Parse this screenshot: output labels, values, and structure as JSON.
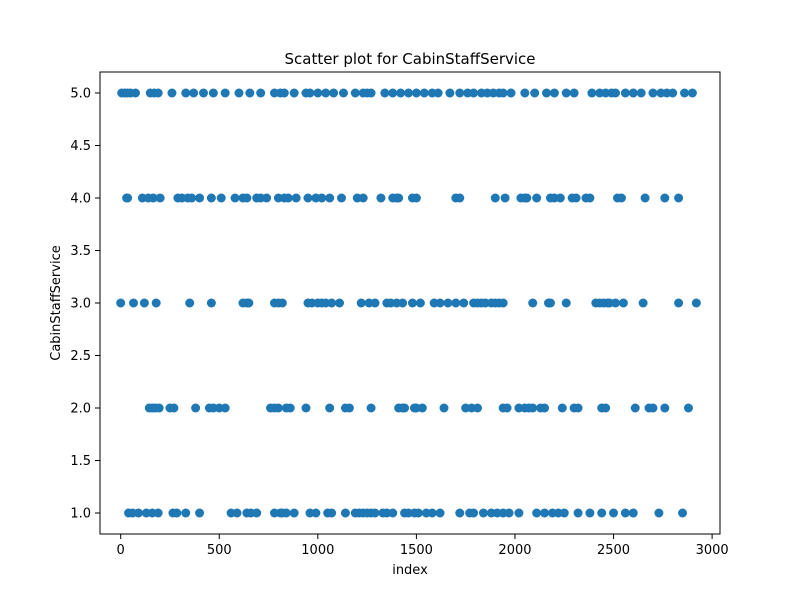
{
  "chart_data": {
    "type": "scatter",
    "title": "Scatter plot for CabinStaffService",
    "xlabel": "index",
    "ylabel": "CabinStaffService",
    "xlim": [
      -105,
      3040
    ],
    "ylim": [
      0.8,
      5.2
    ],
    "xticks": [
      0,
      500,
      1000,
      1500,
      2000,
      2500,
      3000
    ],
    "yticks": [
      1.0,
      1.5,
      2.0,
      2.5,
      3.0,
      3.5,
      4.0,
      4.5,
      5.0
    ],
    "xtick_labels": [
      "0",
      "500",
      "1000",
      "1500",
      "2000",
      "2500",
      "3000"
    ],
    "ytick_labels": [
      "1.0",
      "1.5",
      "2.0",
      "2.5",
      "3.0",
      "3.5",
      "4.0",
      "4.5",
      "5.0"
    ],
    "marker_color": "#1f77b4",
    "grid": false,
    "series": [
      {
        "x": [
          5,
          20,
          35,
          50,
          75,
          150,
          170,
          190,
          260,
          330,
          370,
          420,
          470,
          530,
          600,
          655,
          710,
          780,
          810,
          830,
          880,
          940,
          960,
          1000,
          1040,
          1080,
          1130,
          1190,
          1230,
          1250,
          1270,
          1340,
          1380,
          1420,
          1460,
          1500,
          1540,
          1580,
          1610,
          1670,
          1720,
          1760,
          1790,
          1830,
          1860,
          1890,
          1920,
          1940,
          1980,
          2050,
          2100,
          2160,
          2200,
          2260,
          2300,
          2390,
          2430,
          2460,
          2490,
          2510,
          2560,
          2600,
          2640,
          2700,
          2740,
          2770,
          2800,
          2860,
          2900,
          30,
          35,
          110,
          140,
          165,
          200,
          290,
          310,
          340,
          360,
          400,
          460,
          510,
          580,
          620,
          640,
          690,
          710,
          740,
          800,
          830,
          850,
          890,
          950,
          990,
          1020,
          1060,
          1120,
          1200,
          1230,
          1320,
          1380,
          1400,
          1410,
          1480,
          1500,
          1700,
          1720,
          1900,
          1950,
          2030,
          2050,
          2060,
          2110,
          2180,
          2200,
          2230,
          2290,
          2310,
          2360,
          2380,
          2520,
          2540,
          2660,
          2760,
          2830,
          0,
          65,
          120,
          180,
          350,
          460,
          620,
          640,
          650,
          780,
          800,
          820,
          950,
          970,
          1000,
          1020,
          1040,
          1070,
          1110,
          1220,
          1260,
          1290,
          1350,
          1370,
          1400,
          1430,
          1480,
          1520,
          1590,
          1620,
          1660,
          1700,
          1740,
          1790,
          1810,
          1830,
          1850,
          1880,
          1900,
          1920,
          1940,
          2090,
          2170,
          2180,
          2260,
          2410,
          2430,
          2450,
          2470,
          2480,
          2510,
          2550,
          2650,
          2830,
          2920,
          145,
          160,
          175,
          195,
          250,
          270,
          380,
          450,
          470,
          500,
          530,
          760,
          780,
          800,
          840,
          860,
          940,
          1060,
          1140,
          1160,
          1270,
          1410,
          1430,
          1440,
          1490,
          1500,
          1530,
          1640,
          1750,
          1780,
          1810,
          1940,
          1960,
          2020,
          2050,
          2070,
          2090,
          2130,
          2150,
          2240,
          2300,
          2320,
          2440,
          2460,
          2610,
          2680,
          2700,
          2760,
          2880,
          40,
          60,
          90,
          130,
          160,
          190,
          265,
          285,
          330,
          400,
          560,
          590,
          640,
          660,
          690,
          780,
          810,
          820,
          840,
          880,
          960,
          990,
          1050,
          1070,
          1140,
          1190,
          1210,
          1230,
          1250,
          1270,
          1290,
          1330,
          1350,
          1380,
          1440,
          1460,
          1490,
          1510,
          1550,
          1580,
          1620,
          1720,
          1770,
          1790,
          1840,
          1880,
          1910,
          1940,
          1970,
          2020,
          2110,
          2150,
          2190,
          2220,
          2250,
          2320,
          2380,
          2440,
          2500,
          2560,
          2600,
          2730,
          2850
        ],
        "y": [
          5,
          5,
          5,
          5,
          5,
          5,
          5,
          5,
          5,
          5,
          5,
          5,
          5,
          5,
          5,
          5,
          5,
          5,
          5,
          5,
          5,
          5,
          5,
          5,
          5,
          5,
          5,
          5,
          5,
          5,
          5,
          5,
          5,
          5,
          5,
          5,
          5,
          5,
          5,
          5,
          5,
          5,
          5,
          5,
          5,
          5,
          5,
          5,
          5,
          5,
          5,
          5,
          5,
          5,
          5,
          5,
          5,
          5,
          5,
          5,
          5,
          5,
          5,
          5,
          5,
          5,
          5,
          5,
          5,
          4,
          4,
          4,
          4,
          4,
          4,
          4,
          4,
          4,
          4,
          4,
          4,
          4,
          4,
          4,
          4,
          4,
          4,
          4,
          4,
          4,
          4,
          4,
          4,
          4,
          4,
          4,
          4,
          4,
          4,
          4,
          4,
          4,
          4,
          4,
          4,
          4,
          4,
          4,
          4,
          4,
          4,
          4,
          4,
          4,
          4,
          4,
          4,
          4,
          4,
          4,
          4,
          4,
          4,
          4,
          4,
          3,
          3,
          3,
          3,
          3,
          3,
          3,
          3,
          3,
          3,
          3,
          3,
          3,
          3,
          3,
          3,
          3,
          3,
          3,
          3,
          3,
          3,
          3,
          3,
          3,
          3,
          3,
          3,
          3,
          3,
          3,
          3,
          3,
          3,
          3,
          3,
          3,
          3,
          3,
          3,
          3,
          3,
          3,
          3,
          3,
          3,
          3,
          3,
          3,
          3,
          3,
          3,
          3,
          3,
          3,
          2,
          2,
          2,
          2,
          2,
          2,
          2,
          2,
          2,
          2,
          2,
          2,
          2,
          2,
          2,
          2,
          2,
          2,
          2,
          2,
          2,
          2,
          2,
          2,
          2,
          2,
          2,
          2,
          2,
          2,
          2,
          2,
          2,
          2,
          2,
          2,
          2,
          2,
          2,
          2,
          2,
          2,
          2,
          2,
          2,
          2,
          2,
          2,
          2,
          1,
          1,
          1,
          1,
          1,
          1,
          1,
          1,
          1,
          1,
          1,
          1,
          1,
          1,
          1,
          1,
          1,
          1,
          1,
          1,
          1,
          1,
          1,
          1,
          1,
          1,
          1,
          1,
          1,
          1,
          1,
          1,
          1,
          1,
          1,
          1,
          1,
          1,
          1,
          1,
          1,
          1,
          1,
          1,
          1,
          1,
          1,
          1,
          1,
          1,
          1,
          1,
          1,
          1,
          1,
          1,
          1,
          1,
          1,
          1,
          1,
          1,
          1
        ]
      }
    ]
  }
}
